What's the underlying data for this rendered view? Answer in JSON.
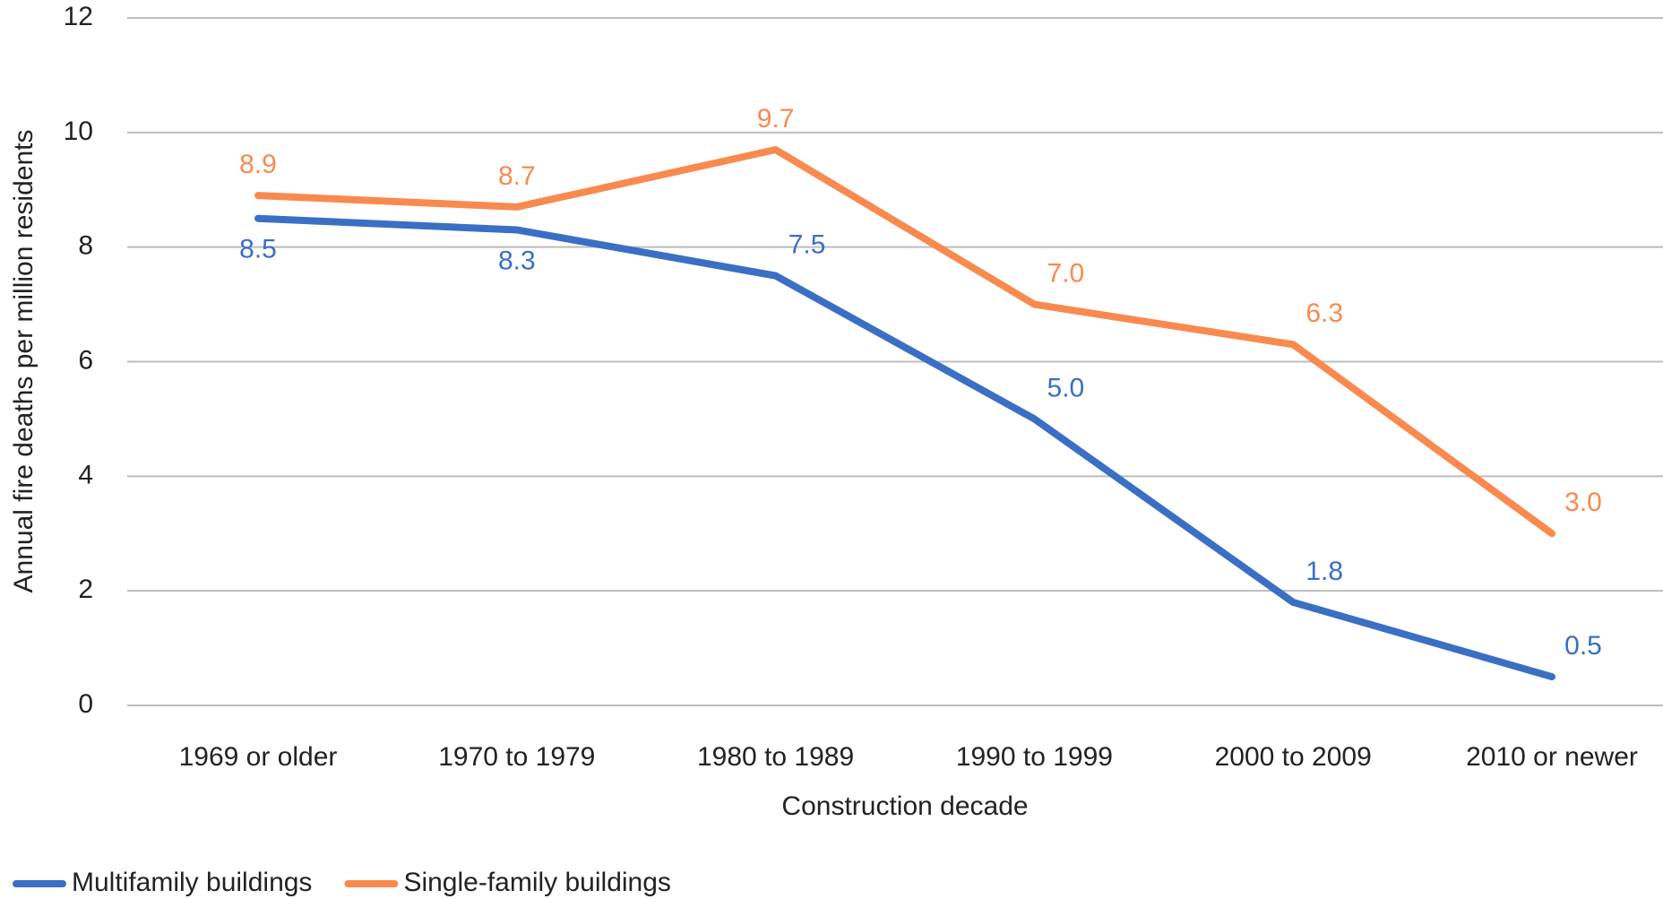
{
  "chart_data": {
    "type": "line",
    "x_label": "Construction decade",
    "y_label": "Annual fire deaths per million residents",
    "categories": [
      "1969 or older",
      "1970 to 1979",
      "1980 to 1989",
      "1990 to 1999",
      "2000 to 2009",
      "2010 or newer"
    ],
    "series": [
      {
        "name": "Multifamily buildings",
        "color": "#3a6fc4",
        "values": [
          8.5,
          8.3,
          7.5,
          5.0,
          1.8,
          0.5
        ],
        "value_labels": [
          "8.5",
          "8.3",
          "7.5",
          "5.0",
          "1.8",
          "0.5"
        ]
      },
      {
        "name": "Single-family buildings",
        "color": "#f98a4f",
        "values": [
          8.9,
          8.7,
          9.7,
          7.0,
          6.3,
          3.0
        ],
        "value_labels": [
          "8.9",
          "8.7",
          "9.7",
          "7.0",
          "6.3",
          "3.0"
        ]
      }
    ],
    "ylim": [
      0,
      12
    ],
    "yticks": [
      0,
      2,
      4,
      6,
      8,
      10,
      12
    ],
    "grid": true,
    "legend": "bottom"
  }
}
